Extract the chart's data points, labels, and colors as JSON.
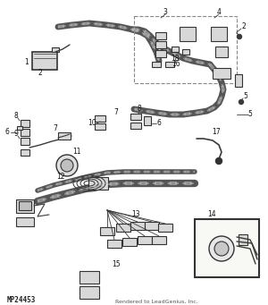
{
  "bg_color": "#f5f5f0",
  "text_bottom_left": "MP24453",
  "text_bottom_center": "Rendered to LeadGenius, Inc.",
  "fig_width": 3.0,
  "fig_height": 3.41,
  "dpi": 100,
  "line_color": "#3a3a3a",
  "component_fill": "#d8d8d8",
  "component_edge": "#333333",
  "harness_color": "#555555",
  "chain_color": "#888888"
}
